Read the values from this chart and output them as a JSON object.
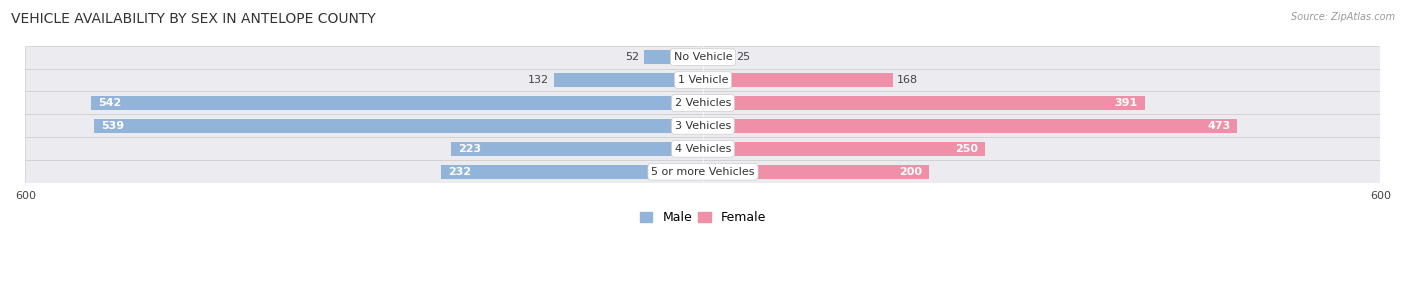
{
  "title": "VEHICLE AVAILABILITY BY SEX IN ANTELOPE COUNTY",
  "source": "Source: ZipAtlas.com",
  "categories": [
    "5 or more Vehicles",
    "4 Vehicles",
    "3 Vehicles",
    "2 Vehicles",
    "1 Vehicle",
    "No Vehicle"
  ],
  "male_values": [
    232,
    223,
    539,
    542,
    132,
    52
  ],
  "female_values": [
    200,
    250,
    473,
    391,
    168,
    25
  ],
  "male_color": "#92b4d8",
  "female_color": "#f090a8",
  "row_bg_color": "#ebebf0",
  "row_border_color": "#cccccc",
  "axis_limit": 600,
  "bar_height": 0.6,
  "title_fontsize": 10,
  "tick_fontsize": 8,
  "value_fontsize": 8,
  "category_fontsize": 8,
  "legend_fontsize": 9
}
